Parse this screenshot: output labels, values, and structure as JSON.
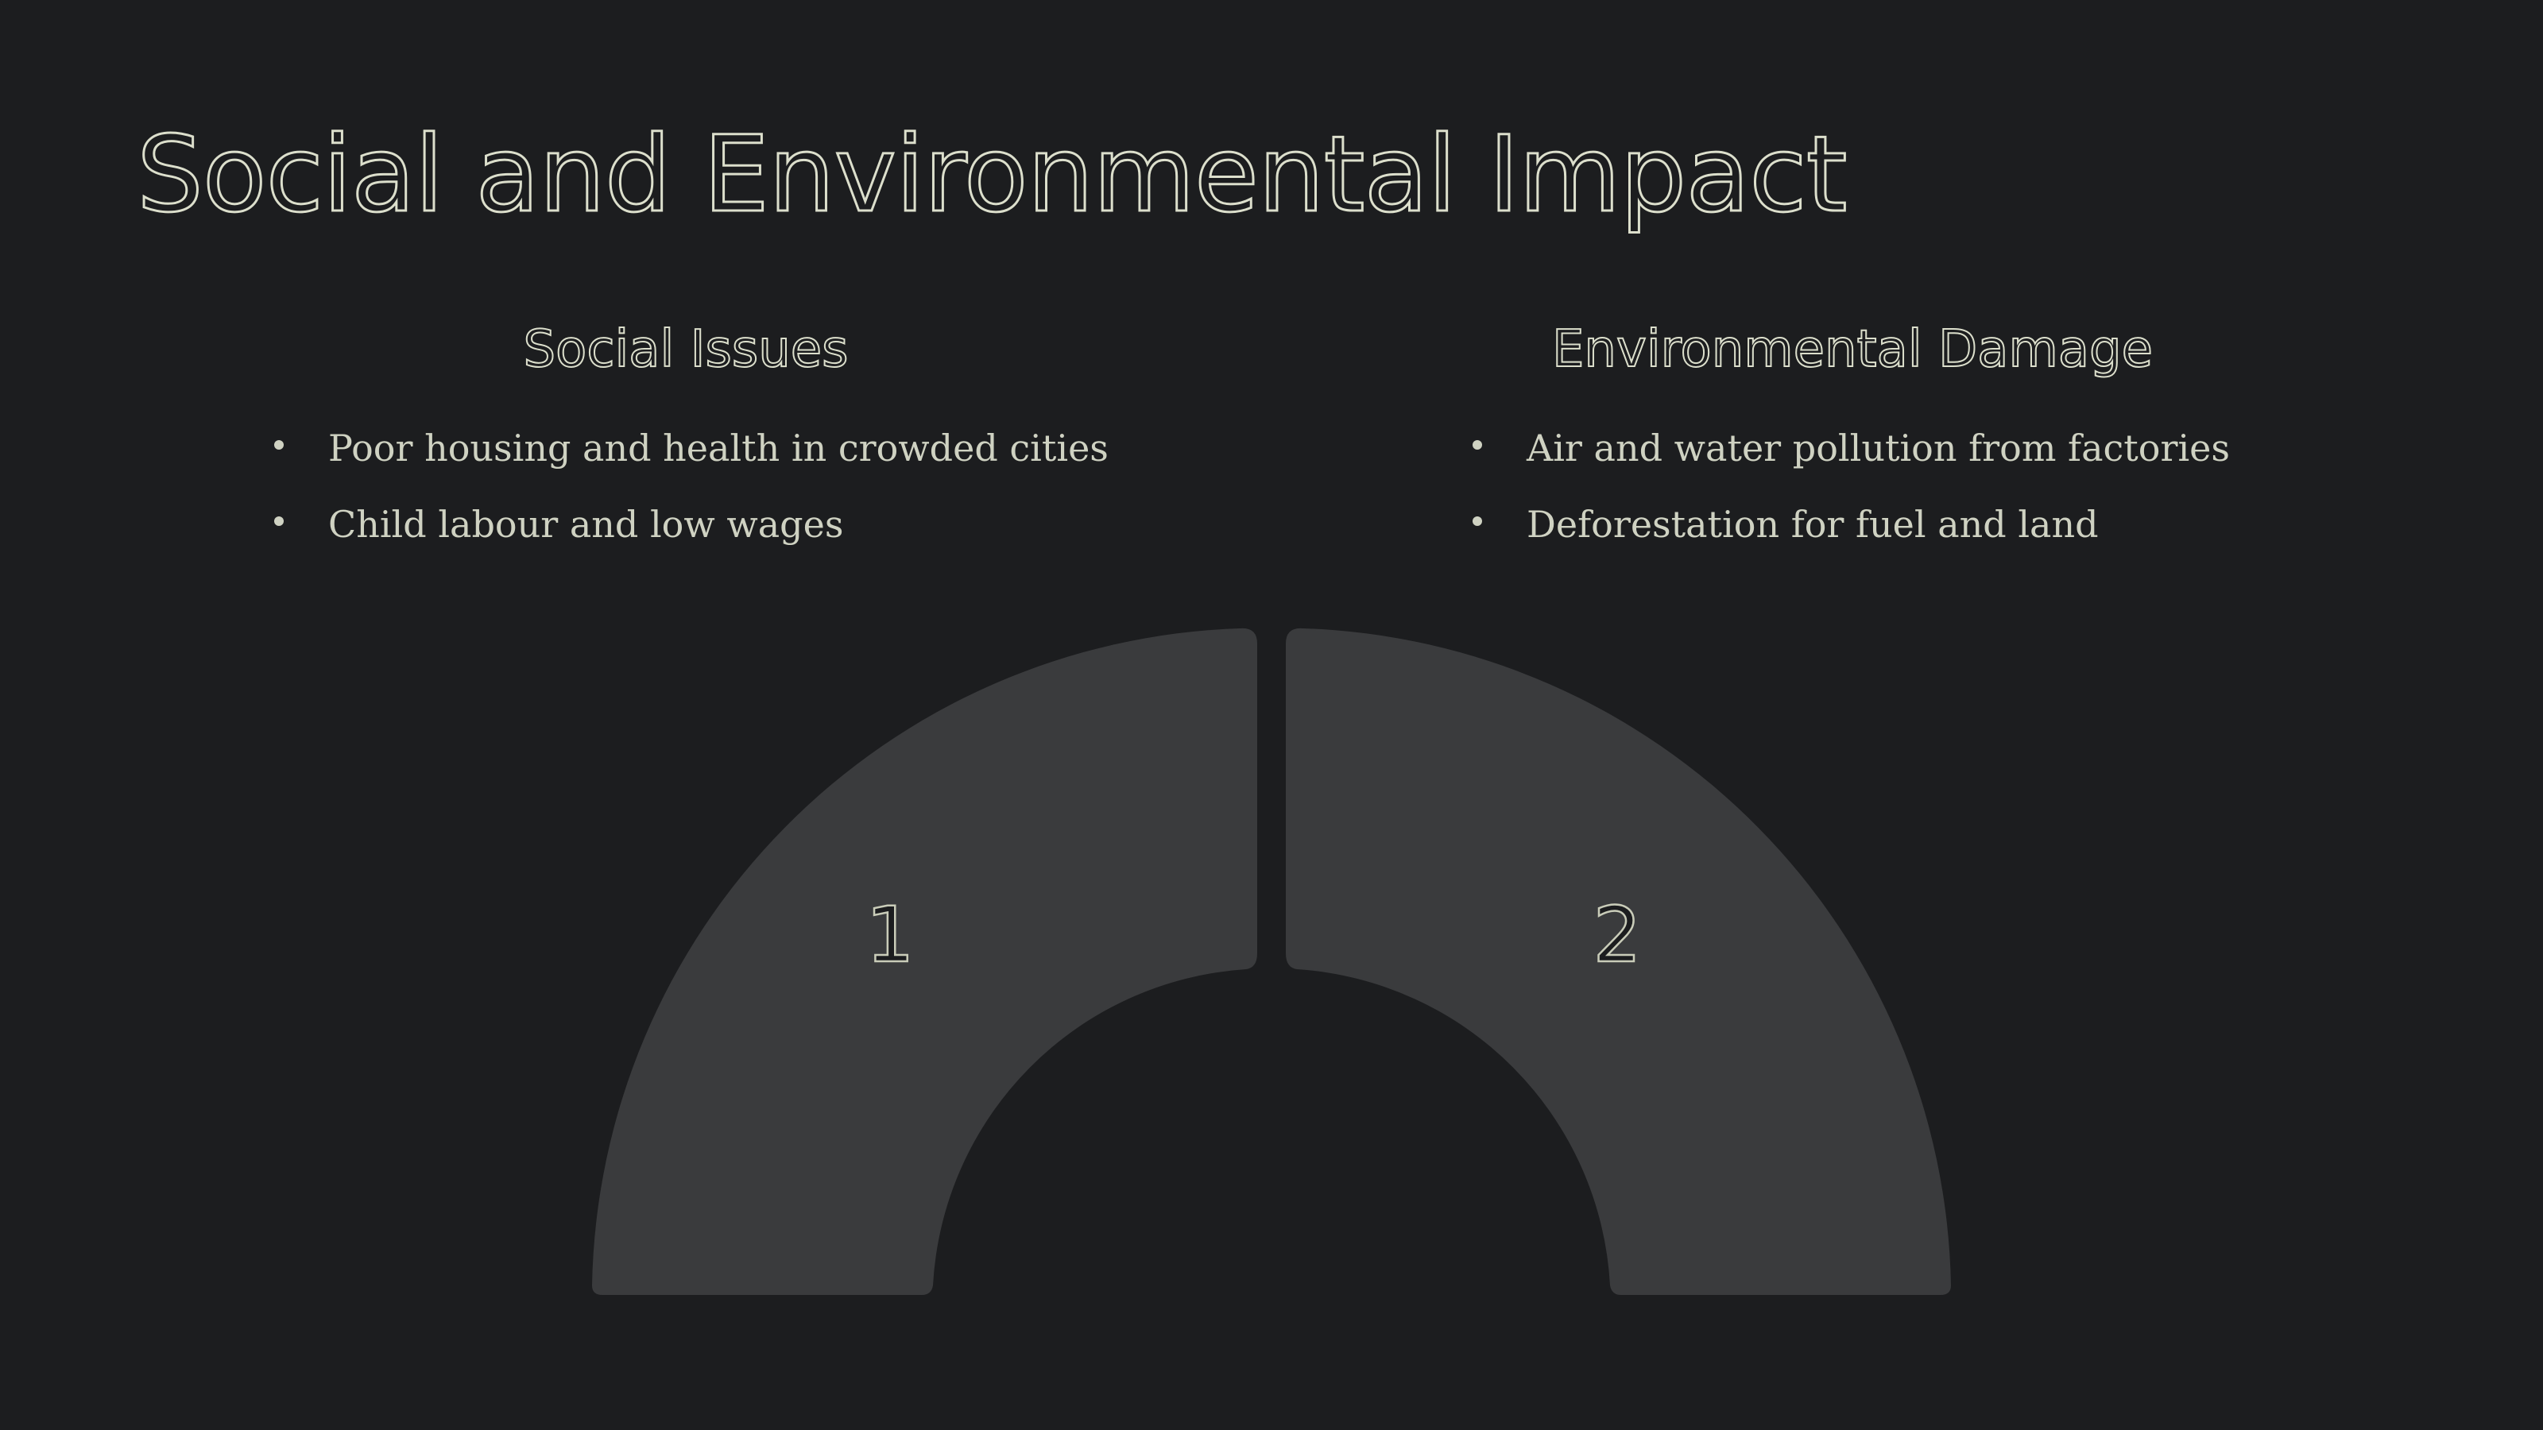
{
  "slide": {
    "title": "Social and Environmental Impact",
    "columns": [
      {
        "heading": "Social Issues",
        "bullets": [
          "Poor housing and health in crowded cities",
          "Child labour and low wages"
        ]
      },
      {
        "heading": "Environmental Damage",
        "bullets": [
          "Air and water pollution from factories",
          "Deforestation for fuel and land"
        ]
      }
    ],
    "segments": [
      {
        "label": "1"
      },
      {
        "label": "2"
      }
    ]
  },
  "colors": {
    "background": "#1c1d1f",
    "text": "#dcdfcc",
    "segment_fill": "#3a3b3d"
  }
}
